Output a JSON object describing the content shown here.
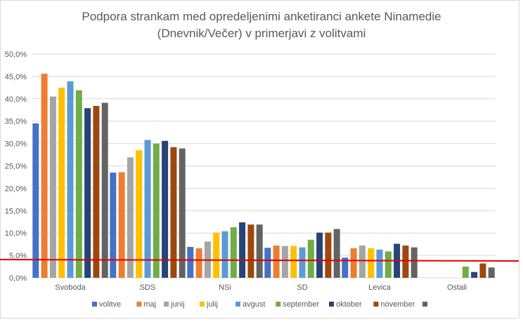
{
  "chart_data": {
    "type": "bar",
    "title_line1": "Podpora strankam med opredeljenimi anketiranci ankete Ninamedie",
    "title_line2": "(Dnevnik/Večer) v primerjavi z volitvami",
    "categories": [
      "Svoboda",
      "SDS",
      "NSi",
      "SD",
      "Levica",
      "Ostali"
    ],
    "ylim": [
      0,
      50
    ],
    "yticks": [
      "0,0%",
      "5,0%",
      "10,0%",
      "15,0%",
      "20,0%",
      "25,0%",
      "30,0%",
      "35,0%",
      "40,0%",
      "45,0%",
      "50,0%"
    ],
    "grid": true,
    "legend_position": "bottom",
    "threshold_line": {
      "value": 4,
      "color": "#e00000"
    },
    "series": [
      {
        "name": "volitve",
        "color": "#4472c4",
        "values": [
          34.5,
          23.5,
          6.9,
          6.7,
          4.5,
          null
        ]
      },
      {
        "name": "maj",
        "color": "#ed7d31",
        "values": [
          45.6,
          23.6,
          6.6,
          7.2,
          6.6,
          null
        ]
      },
      {
        "name": "junij",
        "color": "#a5a5a5",
        "values": [
          40.5,
          26.9,
          8.1,
          7.1,
          7.2,
          null
        ]
      },
      {
        "name": "julij",
        "color": "#ffc000",
        "values": [
          42.5,
          28.5,
          10.1,
          7.1,
          6.6,
          null
        ]
      },
      {
        "name": "avgust",
        "color": "#5b9bd5",
        "values": [
          43.9,
          30.8,
          10.4,
          6.8,
          6.3,
          null
        ]
      },
      {
        "name": "september",
        "color": "#70ad47",
        "values": [
          41.9,
          30.0,
          11.3,
          8.5,
          5.9,
          2.5
        ]
      },
      {
        "name": "oktober",
        "color": "#264478",
        "values": [
          37.9,
          30.6,
          12.4,
          10.1,
          7.6,
          1.3
        ]
      },
      {
        "name": "november",
        "color": "#9e480e",
        "values": [
          38.4,
          29.2,
          11.9,
          10.1,
          7.2,
          3.2
        ]
      },
      {
        "name": "",
        "color": "#636363",
        "values": [
          39.1,
          28.9,
          11.9,
          10.9,
          6.8,
          2.3
        ]
      }
    ]
  }
}
